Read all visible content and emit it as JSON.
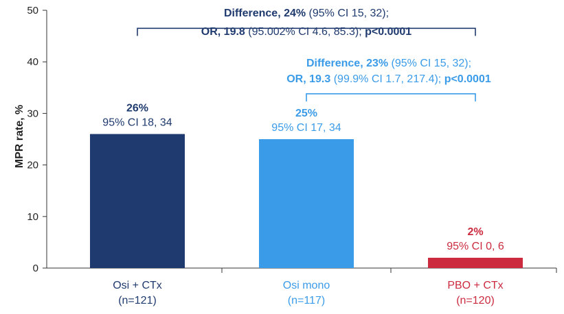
{
  "chart_data": {
    "type": "bar",
    "ylabel": "MPR rate, %",
    "ylim": [
      0,
      50
    ],
    "yticks": [
      0,
      10,
      20,
      30,
      40,
      50
    ],
    "grid": false,
    "bars": [
      {
        "category": "Osi + CTx",
        "n": "(n=121)",
        "value": 26,
        "value_label": "26%",
        "ci": "95% CI 18, 34",
        "color": "#1f3a6e",
        "label_color": "#1f3a6e"
      },
      {
        "category": "Osi mono",
        "n": "(n=117)",
        "value": 25,
        "value_label": "25%",
        "ci": "95% CI 17, 34",
        "color": "#3a9be8",
        "label_color": "#3a9be8"
      },
      {
        "category": "PBO + CTx",
        "n": "(n=120)",
        "value": 2,
        "value_label": "2%",
        "ci": "95% CI 0, 6",
        "color": "#cc2b3f",
        "label_color": "#cc2b3f"
      }
    ],
    "comparisons": [
      {
        "from": 0,
        "to": 2,
        "level": 46.5,
        "color": "#1f3a6e",
        "line1": [
          {
            "text": "Difference, 24%",
            "bold": true
          },
          {
            "text": " (95% CI 15, 32);",
            "bold": false
          }
        ],
        "line2": [
          {
            "text": "OR, 19.8",
            "bold": true
          },
          {
            "text": " (95.002% CI 4.6, 85.3); ",
            "bold": false
          },
          {
            "text": "p<0.0001",
            "bold": true
          }
        ]
      },
      {
        "from": 1,
        "to": 2,
        "level": 33.8,
        "color": "#3a9be8",
        "line1": [
          {
            "text": "Difference, 23%",
            "bold": true
          },
          {
            "text": " (95% CI 15, 32);",
            "bold": false
          }
        ],
        "line2": [
          {
            "text": "OR, 19.3",
            "bold": true
          },
          {
            "text": " (99.9% CI 1.7, 217.4); ",
            "bold": false
          },
          {
            "text": "p<0.0001",
            "bold": true
          }
        ]
      }
    ]
  }
}
